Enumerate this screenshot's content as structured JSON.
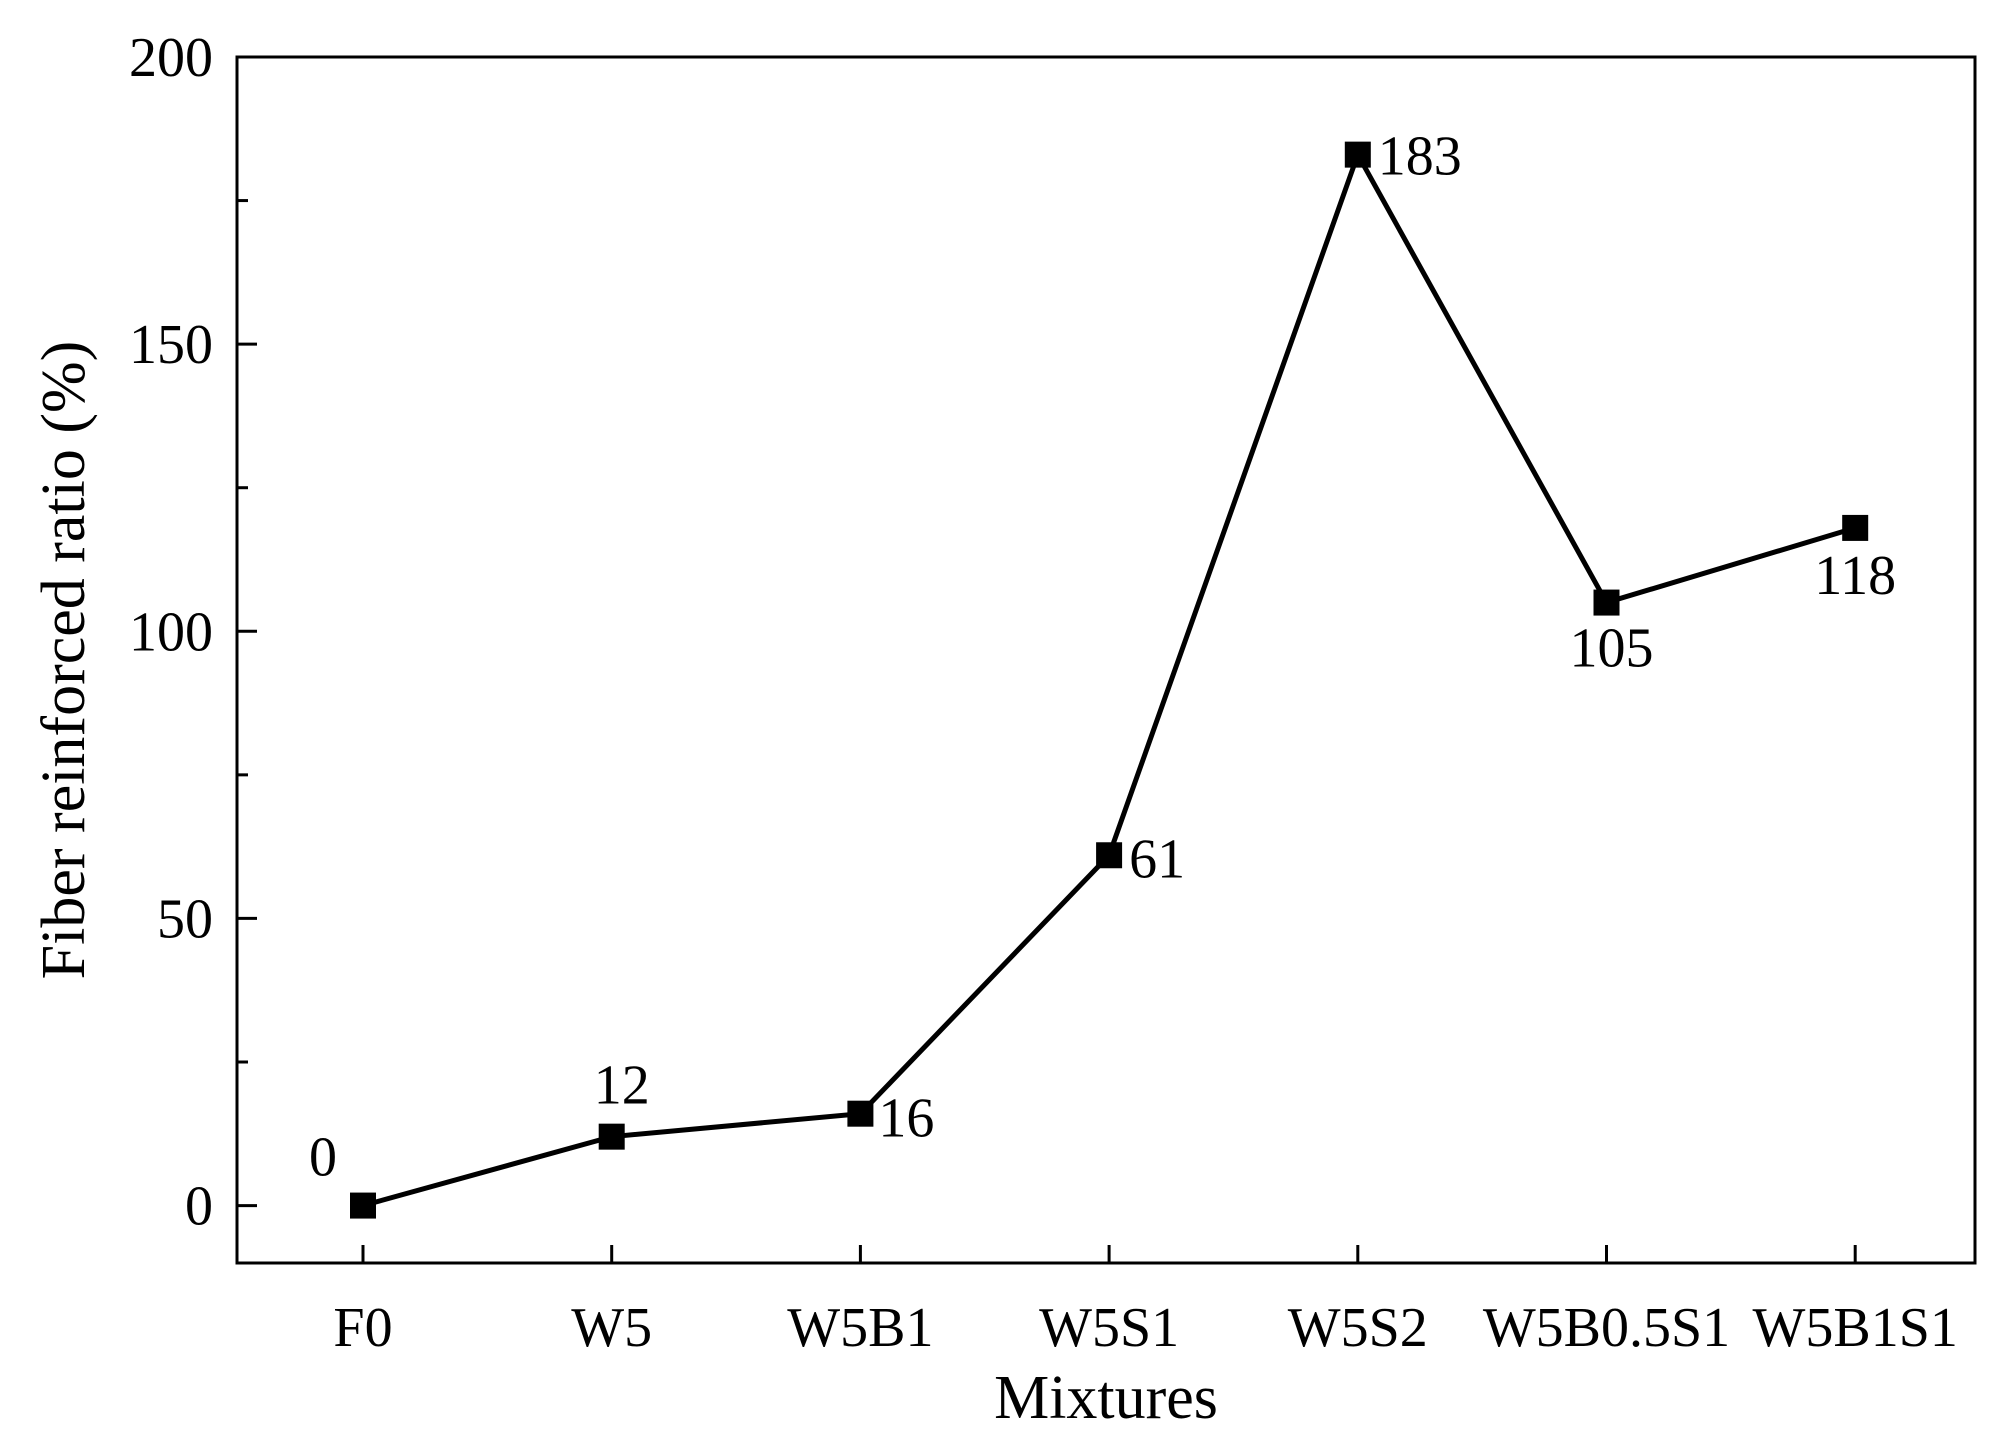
{
  "chart_data": {
    "type": "line",
    "title": "",
    "xlabel": "Mixtures",
    "ylabel": "Fiber reinforced ratio (%)",
    "categories": [
      "F0",
      "W5",
      "W5B1",
      "W5S1",
      "W5S2",
      "W5B0.5S1",
      "W5B1S1"
    ],
    "series": [
      {
        "values": [
          0,
          12,
          16,
          61,
          183,
          105,
          118
        ],
        "marker": "square",
        "color": "#000000"
      }
    ],
    "data_labels": [
      "0",
      "12",
      "16",
      "61",
      "183",
      "105",
      "118"
    ],
    "ylim": [
      -10,
      200
    ],
    "yticks": [
      0,
      50,
      100,
      150,
      200
    ],
    "y_minor_ticks": [
      25,
      75,
      125,
      175
    ],
    "grid": false,
    "legend": "none"
  }
}
